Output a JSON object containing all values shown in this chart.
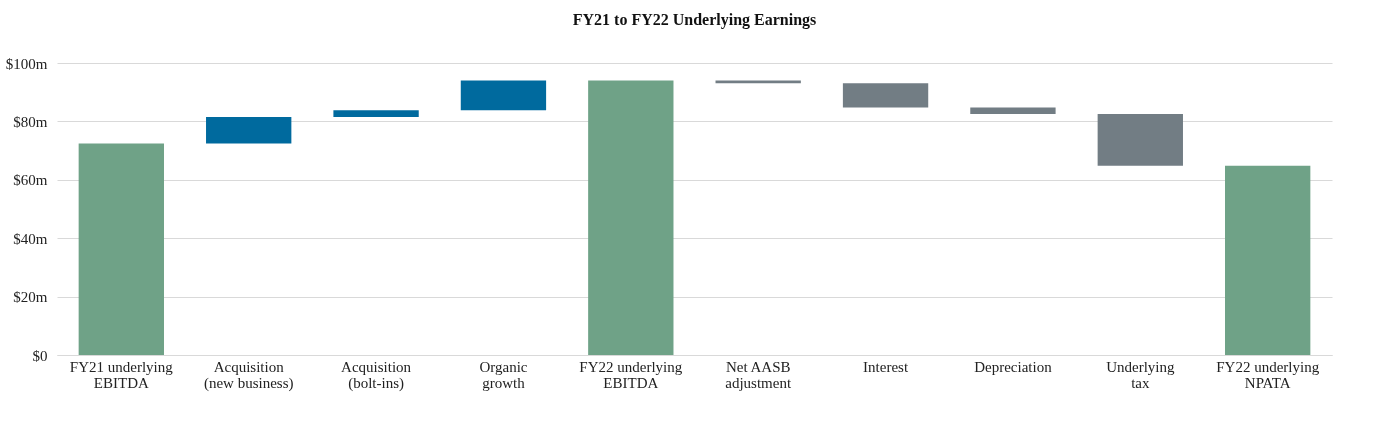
{
  "chart_data": {
    "type": "bar",
    "title": "FY21 to FY22 Underlying Earnings",
    "categories": [
      "FY21 underlying\nEBITDA",
      "Acquisition\n(new business)",
      "Acquisition\n(bolt-ins)",
      "Organic\ngrowth",
      "FY22 underlying\nEBITDA",
      "Net AASB\nadjustment",
      "Interest",
      "Depreciation",
      "Underlying\ntax",
      "FY22 underlying\nNPATA"
    ],
    "values": [
      72.4,
      9.1,
      2.3,
      10.2,
      94.0,
      -0.9,
      -8.3,
      -2.3,
      -17.7,
      64.8
    ],
    "base": [
      0,
      72.4,
      81.5,
      83.8,
      0,
      94.0,
      93.1,
      84.8,
      82.5,
      0
    ],
    "colors": [
      "#6fa287",
      "#006a9e",
      "#006a9e",
      "#006a9e",
      "#6fa287",
      "#727d84",
      "#727d84",
      "#727d84",
      "#727d84",
      "#6fa287"
    ],
    "ylim": [
      0,
      100
    ],
    "yticks": [
      {
        "value": 0,
        "label": "$0"
      },
      {
        "value": 20,
        "label": "$20m"
      },
      {
        "value": 40,
        "label": "$40m"
      },
      {
        "value": 60,
        "label": "$60m"
      },
      {
        "value": 80,
        "label": "$80m"
      },
      {
        "value": 100,
        "label": "$100m"
      }
    ],
    "grid": "y"
  }
}
